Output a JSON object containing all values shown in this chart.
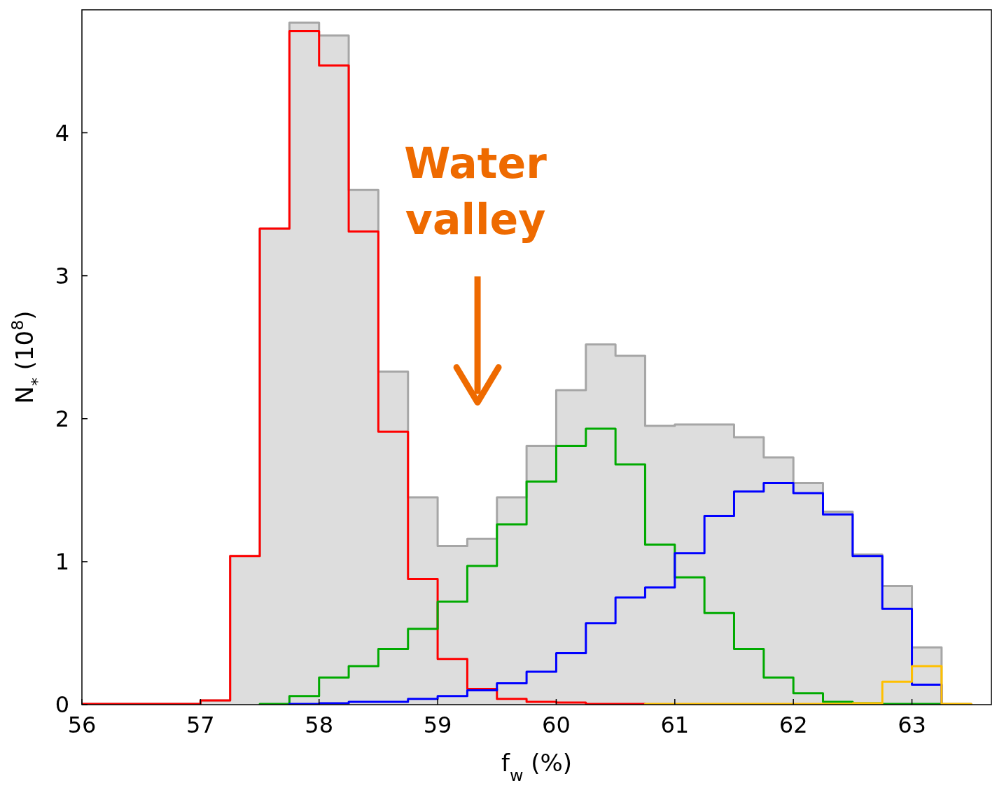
{
  "chart_data": {
    "type": "histogram",
    "xlabel": "f$_{w}$ (%)",
    "ylabel": "N$_{*}$ (10$^{8}$)",
    "bins": [
      56,
      56.25,
      56.5,
      56.75,
      57,
      57.25,
      57.5,
      57.75,
      58,
      58.25,
      58.5,
      58.75,
      59,
      59.25,
      59.5,
      59.75,
      60,
      60.25,
      60.5,
      60.75,
      61,
      61.25,
      61.5,
      61.75,
      62,
      62.25,
      62.5,
      62.75,
      63,
      63.25,
      63.5
    ],
    "series": [
      {
        "color": "#dddddd",
        "values": [
          0.005,
          0.005,
          0.005,
          0.005,
          0.03,
          1.04,
          3.33,
          4.77,
          4.68,
          3.6,
          2.33,
          1.45,
          1.11,
          1.16,
          1.45,
          1.81,
          2.2,
          2.52,
          2.44,
          1.95,
          1.96,
          1.96,
          1.87,
          1.73,
          1.55,
          1.35,
          1.05,
          0.83,
          0.4,
          0.005
        ]
      },
      {
        "type": "step",
        "color": "#ff0000",
        "x": [
          56,
          56.25,
          56.5,
          56.75,
          57,
          57.25,
          57.5,
          57.75,
          58,
          58.25,
          58.5,
          58.75,
          59,
          59.25,
          59.5,
          59.75,
          60,
          60.25,
          60.5,
          60.75
        ],
        "values": [
          0.005,
          0.005,
          0.005,
          0.005,
          0.03,
          1.04,
          3.33,
          4.71,
          4.47,
          3.31,
          1.91,
          0.88,
          0.32,
          0.11,
          0.04,
          0.02,
          0.015,
          0.005,
          0.005,
          0
        ]
      },
      {
        "type": "step",
        "color": "#00aa00",
        "x": [
          57.5,
          57.75,
          58,
          58.25,
          58.5,
          58.75,
          59,
          59.25,
          59.5,
          59.75,
          60,
          60.25,
          60.5,
          60.75,
          61,
          61.25,
          61.5,
          61.75,
          62,
          62.25,
          62.5,
          62.75,
          63,
          63.25
        ],
        "values": [
          0.005,
          0.06,
          0.19,
          0.27,
          0.39,
          0.53,
          0.72,
          0.97,
          1.26,
          1.56,
          1.81,
          1.93,
          1.68,
          1.12,
          0.89,
          0.64,
          0.39,
          0.19,
          0.08,
          0.02,
          0.01,
          0.005,
          0.005,
          0
        ]
      },
      {
        "type": "step",
        "color": "#0000ff",
        "x": [
          57.75,
          58,
          58.25,
          58.5,
          58.75,
          59,
          59.25,
          59.5,
          59.75,
          60,
          60.25,
          60.5,
          60.75,
          61,
          61.25,
          61.5,
          61.75,
          62,
          62.25,
          62.5,
          62.75,
          63,
          63.25
        ],
        "values": [
          0.005,
          0.01,
          0.02,
          0.02,
          0.04,
          0.06,
          0.1,
          0.15,
          0.23,
          0.36,
          0.57,
          0.75,
          0.82,
          1.06,
          1.32,
          1.49,
          1.55,
          1.48,
          1.33,
          1.04,
          0.67,
          0.14,
          0
        ]
      },
      {
        "type": "step",
        "color": "#ffc000",
        "x": [
          60.75,
          61,
          61.25,
          61.5,
          61.75,
          62,
          62.25,
          62.5,
          62.75,
          63,
          63.25,
          63.5
        ],
        "values": [
          0.005,
          0.005,
          0.005,
          0.005,
          0.005,
          0.005,
          0.005,
          0.01,
          0.16,
          0.27,
          0.005,
          0
        ]
      }
    ],
    "xlim": [
      56,
      63.67
    ],
    "xticks": [
      56,
      57,
      58,
      59,
      60,
      61,
      62,
      63
    ],
    "ylim": [
      0,
      4.86
    ],
    "yticks": [
      0,
      1,
      2,
      3,
      4
    ],
    "annotations": [
      "Water valley"
    ]
  }
}
